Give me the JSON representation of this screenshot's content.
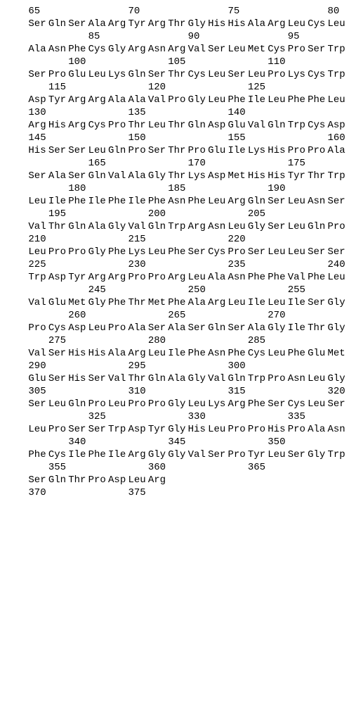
{
  "rows": [
    {
      "type": "num",
      "cells": [
        "",
        "65",
        "",
        "",
        "",
        "",
        "70",
        "",
        "",
        "",
        "",
        "75",
        "",
        "",
        "",
        "",
        "80"
      ]
    },
    {
      "type": "aa",
      "cells": [
        "",
        "Ser",
        "Gln",
        "Ser",
        "Ala",
        "Arg",
        "Tyr",
        "Arg",
        "Thr",
        "Gly",
        "His",
        "His",
        "Ala",
        "Arg",
        "Leu",
        "Cys",
        "Leu"
      ]
    },
    {
      "type": "num",
      "cells": [
        "",
        "",
        "",
        "",
        "85",
        "",
        "",
        "",
        "",
        "90",
        "",
        "",
        "",
        "",
        "95",
        "",
        ""
      ]
    },
    {
      "type": "aa",
      "cells": [
        "",
        "Ala",
        "Asn",
        "Phe",
        "Cys",
        "Gly",
        "Arg",
        "Asn",
        "Arg",
        "Val",
        "Ser",
        "Leu",
        "Met",
        "Cys",
        "Pro",
        "Ser",
        "Trp"
      ]
    },
    {
      "type": "num",
      "cells": [
        "",
        "",
        "",
        "100",
        "",
        "",
        "",
        "",
        "105",
        "",
        "",
        "",
        "",
        "110",
        "",
        "",
        ""
      ]
    },
    {
      "type": "aa",
      "cells": [
        "",
        "Ser",
        "Pro",
        "Glu",
        "Leu",
        "Lys",
        "Gln",
        "Ser",
        "Thr",
        "Cys",
        "Leu",
        "Ser",
        "Leu",
        "Pro",
        "Lys",
        "Cys",
        "Trp"
      ]
    },
    {
      "type": "num",
      "cells": [
        "",
        "",
        "115",
        "",
        "",
        "",
        "",
        "120",
        "",
        "",
        "",
        "",
        "125",
        "",
        "",
        "",
        ""
      ]
    },
    {
      "type": "aa",
      "cells": [
        "",
        "Asp",
        "Tyr",
        "Arg",
        "Arg",
        "Ala",
        "Ala",
        "Val",
        "Pro",
        "Gly",
        "Leu",
        "Phe",
        "Ile",
        "Leu",
        "Phe",
        "Phe",
        "Leu"
      ]
    },
    {
      "type": "num",
      "cells": [
        "",
        "130",
        "",
        "",
        "",
        "",
        "135",
        "",
        "",
        "",
        "",
        "140",
        "",
        "",
        "",
        "",
        ""
      ]
    },
    {
      "type": "aa",
      "cells": [
        "",
        "Arg",
        "His",
        "Arg",
        "Cys",
        "Pro",
        "Thr",
        "Leu",
        "Thr",
        "Gln",
        "Asp",
        "Glu",
        "Val",
        "Gln",
        "Trp",
        "Cys",
        "Asp"
      ]
    },
    {
      "type": "num",
      "cells": [
        "",
        "145",
        "",
        "",
        "",
        "",
        "150",
        "",
        "",
        "",
        "",
        "155",
        "",
        "",
        "",
        "",
        "160"
      ]
    },
    {
      "type": "aa",
      "cells": [
        "",
        "His",
        "Ser",
        "Ser",
        "Leu",
        "Gln",
        "Pro",
        "Ser",
        "Thr",
        "Pro",
        "Glu",
        "Ile",
        "Lys",
        "His",
        "Pro",
        "Pro",
        "Ala"
      ]
    },
    {
      "type": "num",
      "cells": [
        "",
        "",
        "",
        "",
        "165",
        "",
        "",
        "",
        "",
        "170",
        "",
        "",
        "",
        "",
        "175",
        "",
        ""
      ]
    },
    {
      "type": "aa",
      "cells": [
        "",
        "Ser",
        "Ala",
        "Ser",
        "Gln",
        "Val",
        "Ala",
        "Gly",
        "Thr",
        "Lys",
        "Asp",
        "Met",
        "His",
        "His",
        "Tyr",
        "Thr",
        "Trp"
      ]
    },
    {
      "type": "num",
      "cells": [
        "",
        "",
        "",
        "180",
        "",
        "",
        "",
        "",
        "185",
        "",
        "",
        "",
        "",
        "190",
        "",
        "",
        ""
      ]
    },
    {
      "type": "aa",
      "cells": [
        "",
        "Leu",
        "Ile",
        "Phe",
        "Ile",
        "Phe",
        "Ile",
        "Phe",
        "Asn",
        "Phe",
        "Leu",
        "Arg",
        "Gln",
        "Ser",
        "Leu",
        "Asn",
        "Ser"
      ]
    },
    {
      "type": "num",
      "cells": [
        "",
        "",
        "195",
        "",
        "",
        "",
        "",
        "200",
        "",
        "",
        "",
        "",
        "205",
        "",
        "",
        "",
        ""
      ]
    },
    {
      "type": "aa",
      "cells": [
        "",
        "Val",
        "Thr",
        "Gln",
        "Ala",
        "Gly",
        "Val",
        "Gln",
        "Trp",
        "Arg",
        "Asn",
        "Leu",
        "Gly",
        "Ser",
        "Leu",
        "Gln",
        "Pro"
      ]
    },
    {
      "type": "num",
      "cells": [
        "",
        "210",
        "",
        "",
        "",
        "",
        "215",
        "",
        "",
        "",
        "",
        "220",
        "",
        "",
        "",
        "",
        ""
      ]
    },
    {
      "type": "aa",
      "cells": [
        "",
        "Leu",
        "Pro",
        "Pro",
        "Gly",
        "Phe",
        "Lys",
        "Leu",
        "Phe",
        "Ser",
        "Cys",
        "Pro",
        "Ser",
        "Leu",
        "Leu",
        "Ser",
        "Ser"
      ]
    },
    {
      "type": "num",
      "cells": [
        "",
        "225",
        "",
        "",
        "",
        "",
        "230",
        "",
        "",
        "",
        "",
        "235",
        "",
        "",
        "",
        "",
        "240"
      ]
    },
    {
      "type": "aa",
      "cells": [
        "",
        "Trp",
        "Asp",
        "Tyr",
        "Arg",
        "Arg",
        "Pro",
        "Pro",
        "Arg",
        "Leu",
        "Ala",
        "Asn",
        "Phe",
        "Phe",
        "Val",
        "Phe",
        "Leu"
      ]
    },
    {
      "type": "num",
      "cells": [
        "",
        "",
        "",
        "",
        "245",
        "",
        "",
        "",
        "",
        "250",
        "",
        "",
        "",
        "",
        "255",
        "",
        ""
      ]
    },
    {
      "type": "aa",
      "cells": [
        "",
        "Val",
        "Glu",
        "Met",
        "Gly",
        "Phe",
        "Thr",
        "Met",
        "Phe",
        "Ala",
        "Arg",
        "Leu",
        "Ile",
        "Leu",
        "Ile",
        "Ser",
        "Gly"
      ]
    },
    {
      "type": "num",
      "cells": [
        "",
        "",
        "",
        "260",
        "",
        "",
        "",
        "",
        "265",
        "",
        "",
        "",
        "",
        "270",
        "",
        "",
        ""
      ]
    },
    {
      "type": "aa",
      "cells": [
        "",
        "Pro",
        "Cys",
        "Asp",
        "Leu",
        "Pro",
        "Ala",
        "Ser",
        "Ala",
        "Ser",
        "Gln",
        "Ser",
        "Ala",
        "Gly",
        "Ile",
        "Thr",
        "Gly"
      ]
    },
    {
      "type": "num",
      "cells": [
        "",
        "",
        "275",
        "",
        "",
        "",
        "",
        "280",
        "",
        "",
        "",
        "",
        "285",
        "",
        "",
        "",
        ""
      ]
    },
    {
      "type": "aa",
      "cells": [
        "",
        "Val",
        "Ser",
        "His",
        "His",
        "Ala",
        "Arg",
        "Leu",
        "Ile",
        "Phe",
        "Asn",
        "Phe",
        "Cys",
        "Leu",
        "Phe",
        "Glu",
        "Met"
      ]
    },
    {
      "type": "num",
      "cells": [
        "",
        "290",
        "",
        "",
        "",
        "",
        "295",
        "",
        "",
        "",
        "",
        "300",
        "",
        "",
        "",
        "",
        ""
      ]
    },
    {
      "type": "aa",
      "cells": [
        "",
        "Glu",
        "Ser",
        "His",
        "Ser",
        "Val",
        "Thr",
        "Gln",
        "Ala",
        "Gly",
        "Val",
        "Gln",
        "Trp",
        "Pro",
        "Asn",
        "Leu",
        "Gly"
      ]
    },
    {
      "type": "num",
      "cells": [
        "",
        "305",
        "",
        "",
        "",
        "",
        "310",
        "",
        "",
        "",
        "",
        "315",
        "",
        "",
        "",
        "",
        "320"
      ]
    },
    {
      "type": "aa",
      "cells": [
        "",
        "Ser",
        "Leu",
        "Gln",
        "Pro",
        "Leu",
        "Pro",
        "Pro",
        "Gly",
        "Leu",
        "Lys",
        "Arg",
        "Phe",
        "Ser",
        "Cys",
        "Leu",
        "Ser"
      ]
    },
    {
      "type": "num",
      "cells": [
        "",
        "",
        "",
        "",
        "325",
        "",
        "",
        "",
        "",
        "330",
        "",
        "",
        "",
        "",
        "335",
        "",
        ""
      ]
    },
    {
      "type": "aa",
      "cells": [
        "",
        "Leu",
        "Pro",
        "Ser",
        "Ser",
        "Trp",
        "Asp",
        "Tyr",
        "Gly",
        "His",
        "Leu",
        "Pro",
        "Pro",
        "His",
        "Pro",
        "Ala",
        "Asn"
      ]
    },
    {
      "type": "num",
      "cells": [
        "",
        "",
        "",
        "340",
        "",
        "",
        "",
        "",
        "345",
        "",
        "",
        "",
        "",
        "350",
        "",
        "",
        ""
      ]
    },
    {
      "type": "aa",
      "cells": [
        "",
        "Phe",
        "Cys",
        "Ile",
        "Phe",
        "Ile",
        "Arg",
        "Gly",
        "Gly",
        "Val",
        "Ser",
        "Pro",
        "Tyr",
        "Leu",
        "Ser",
        "Gly",
        "Trp"
      ]
    },
    {
      "type": "num",
      "cells": [
        "",
        "",
        "355",
        "",
        "",
        "",
        "",
        "360",
        "",
        "",
        "",
        "",
        "365",
        "",
        "",
        "",
        ""
      ]
    },
    {
      "type": "aa",
      "cells": [
        "",
        "Ser",
        "Gln",
        "Thr",
        "Pro",
        "Asp",
        "Leu",
        "Arg",
        "",
        "",
        "",
        "",
        "",
        "",
        "",
        "",
        ""
      ]
    },
    {
      "type": "num",
      "cells": [
        "",
        "370",
        "",
        "",
        "",
        "",
        "375",
        "",
        "",
        "",
        "",
        "",
        "",
        "",
        "",
        "",
        ""
      ]
    }
  ]
}
